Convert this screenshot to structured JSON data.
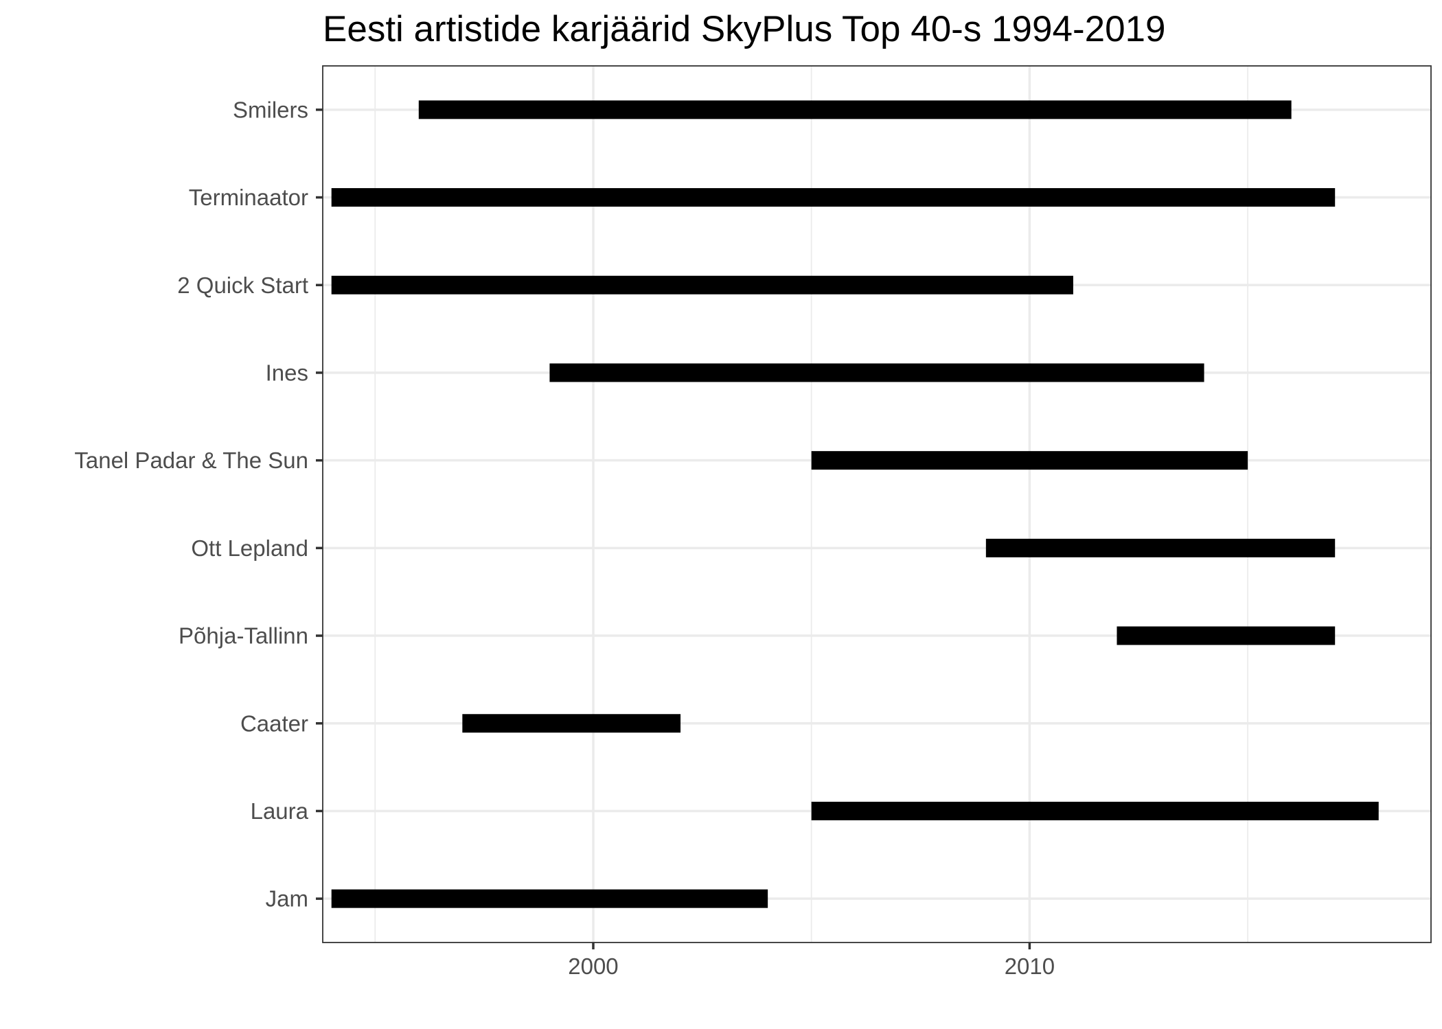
{
  "chart_data": {
    "type": "bar",
    "orientation": "horizontal-range",
    "title": "Eesti artistide karjäärid SkyPlus Top 40-s 1994-2019",
    "xlabel": "",
    "ylabel": "",
    "categories": [
      "Smilers",
      "Terminaator",
      "2 Quick Start",
      "Ines",
      "Tanel Padar & The Sun",
      "Ott Lepland",
      "Põhja-Tallinn",
      "Caater",
      "Laura",
      "Jam"
    ],
    "series": [
      {
        "start": [
          1996,
          1994,
          1994,
          1999,
          2005,
          2009,
          2012,
          1997,
          2005,
          1994
        ],
        "end": [
          2016,
          2017,
          2011,
          2014,
          2015,
          2017,
          2017,
          2002,
          2018,
          2004
        ]
      }
    ],
    "xlim": [
      1993.8,
      2019.2
    ],
    "xticks": [
      2000,
      2010
    ],
    "xtick_labels": [
      "2000",
      "2010"
    ],
    "grid": true,
    "legend": "none",
    "bar_color": "#000000"
  }
}
